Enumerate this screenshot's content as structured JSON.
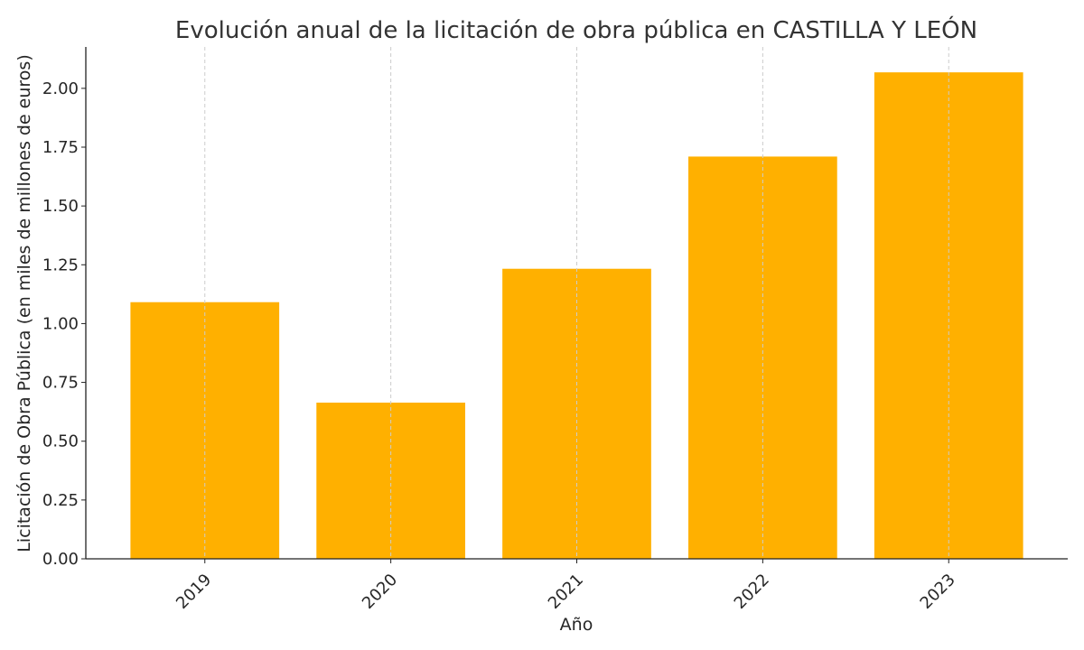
{
  "chart_data": {
    "type": "bar",
    "title": "Evolución anual de la licitación de obra pública en CASTILLA Y LEÓN",
    "xlabel": "Año",
    "ylabel": "Licitación de Obra Pública (en miles de millones de euros)",
    "categories": [
      "2019",
      "2020",
      "2021",
      "2022",
      "2023"
    ],
    "values": [
      1.091,
      0.664,
      1.233,
      1.71,
      2.068
    ],
    "ylim": [
      0,
      2.176
    ],
    "yticks": [
      0,
      0.25,
      0.5,
      0.75,
      1.0,
      1.25,
      1.5,
      1.75,
      2.0
    ],
    "ytick_labels": [
      "0.00",
      "0.25",
      "0.50",
      "0.75",
      "1.00",
      "1.25",
      "1.50",
      "1.75",
      "2.00"
    ],
    "grid": "x-dashed",
    "bar_color": "#FFB000",
    "grid_color": "#cccccc"
  }
}
